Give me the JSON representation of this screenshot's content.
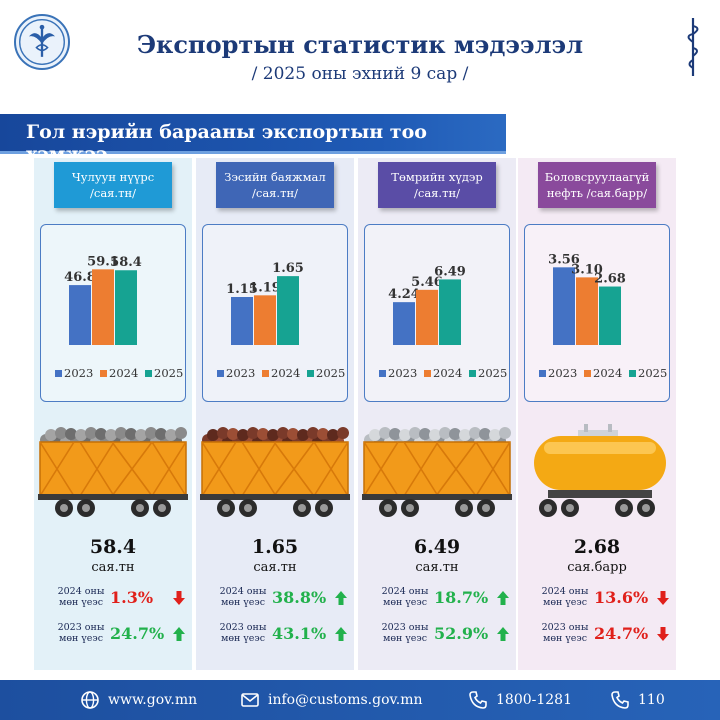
{
  "header": {
    "title": "Экспортын статистик мэдээлэл",
    "subtitle": "/ 2025 оны эхний 9 сар /"
  },
  "section_title": "Гол нэрийн барааны экспортын тоо хэмжээ",
  "colors": {
    "series_2023": "#4472c4",
    "series_2024": "#ed7d31",
    "series_2025": "#16a392",
    "up": "#22b14c",
    "down": "#e0201b"
  },
  "legend_years": [
    "2023",
    "2024",
    "2025"
  ],
  "chart_data": [
    {
      "type": "bar",
      "categories": [
        "2023",
        "2024",
        "2025"
      ],
      "values": [
        46.8,
        59.1,
        58.4
      ],
      "title": "Чулуун нүүрс /сая.тн/",
      "ylim": [
        0,
        75
      ]
    },
    {
      "type": "bar",
      "categories": [
        "2023",
        "2024",
        "2025"
      ],
      "values": [
        1.15,
        1.19,
        1.65
      ],
      "title": "Зэсийн баяжмал /сая.тн/",
      "ylim": [
        0,
        2.3
      ]
    },
    {
      "type": "bar",
      "categories": [
        "2023",
        "2024",
        "2025"
      ],
      "values": [
        4.24,
        5.46,
        6.49
      ],
      "title": "Төмрийн хүдэр /сая.тн/",
      "ylim": [
        0,
        9.5
      ]
    },
    {
      "type": "bar",
      "categories": [
        "2023",
        "2024",
        "2025"
      ],
      "values": [
        3.56,
        3.1,
        2.68
      ],
      "title": "Боловсруулаагүй нефть /сая.барр/",
      "ylim": [
        0,
        4.4
      ]
    }
  ],
  "products": [
    {
      "label_line1": "Чулуун нүүрс",
      "label_line2": "/сая.тн/",
      "label_color": "#1f9ad6",
      "bg_color": "#e3f1f8",
      "value_text": "58.4",
      "unit": "сая.тн",
      "cargo": "coal",
      "comparisons": [
        {
          "line1": "2024 оны",
          "line2": "мөн үеэс",
          "pct": "1.3%",
          "direction": "down"
        },
        {
          "line1": "2023 оны",
          "line2": "мөн үеэс",
          "pct": "24.7%",
          "direction": "up"
        }
      ]
    },
    {
      "label_line1": "Зэсийн баяжмал",
      "label_line2": "/сая.тн/",
      "label_color": "#3f66b6",
      "bg_color": "#e7ebf6",
      "value_text": "1.65",
      "unit": "сая.тн",
      "cargo": "copper",
      "comparisons": [
        {
          "line1": "2024 оны",
          "line2": "мөн үеэс",
          "pct": "38.8%",
          "direction": "up"
        },
        {
          "line1": "2023 оны",
          "line2": "мөн үеэс",
          "pct": "43.1%",
          "direction": "up"
        }
      ]
    },
    {
      "label_line1": "Төмрийн хүдэр",
      "label_line2": "/сая.тн/",
      "label_color": "#5a4da6",
      "bg_color": "#ecebf5",
      "value_text": "6.49",
      "unit": "сая.тн",
      "cargo": "iron",
      "comparisons": [
        {
          "line1": "2024 оны",
          "line2": "мөн үеэс",
          "pct": "18.7%",
          "direction": "up"
        },
        {
          "line1": "2023 оны",
          "line2": "мөн үеэс",
          "pct": "52.9%",
          "direction": "up"
        }
      ]
    },
    {
      "label_line1": "Боловсруулаагүй",
      "label_line2": "нефть /сая.барр/",
      "label_color": "#8a4a9c",
      "bg_color": "#f4eaf4",
      "value_text": "2.68",
      "unit": "сая.барр",
      "cargo": "oil",
      "comparisons": [
        {
          "line1": "2024 оны",
          "line2": "мөн үеэс",
          "pct": "13.6%",
          "direction": "down"
        },
        {
          "line1": "2023 оны",
          "line2": "мөн үеэс",
          "pct": "24.7%",
          "direction": "down"
        }
      ]
    }
  ],
  "footer": {
    "website": "www.gov.mn",
    "email": "info@customs.gov.mn",
    "phone": "1800-1281",
    "hotline": "110",
    "icons": [
      "globe-icon",
      "mail-icon",
      "phone-icon",
      "phone-icon"
    ]
  }
}
